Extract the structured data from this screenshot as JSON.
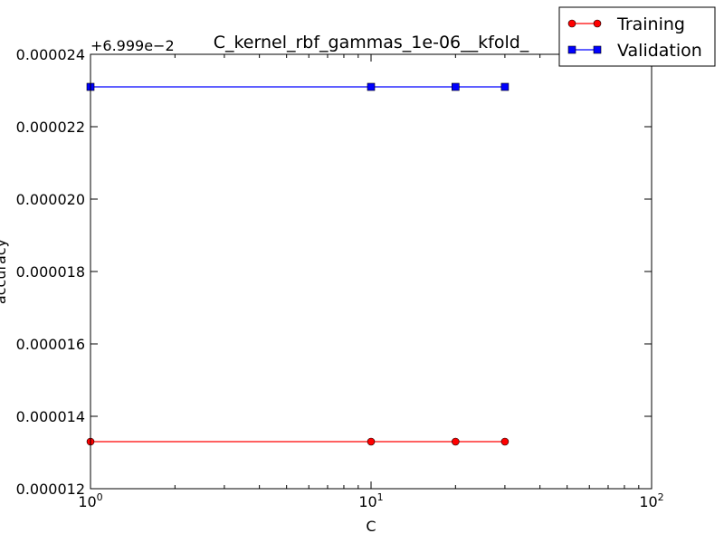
{
  "chart_data": {
    "type": "line",
    "title": "C_kernel_rbf_gammas_1e-06__kfold_",
    "xlabel": "C",
    "ylabel": "accuracy",
    "x_scale": "log",
    "xlim": [
      1,
      100
    ],
    "x_ticks": [
      1,
      10,
      100
    ],
    "x_tick_labels": [
      {
        "base": "10",
        "exp": "0"
      },
      {
        "base": "10",
        "exp": "1"
      },
      {
        "base": "10",
        "exp": "2"
      }
    ],
    "y_offset_label": "+6.999e−2",
    "y_offset": 0.06999,
    "ylim": [
      1.2e-05,
      2.4e-05
    ],
    "y_ticks": [
      1.2e-05,
      1.4e-05,
      1.6e-05,
      1.8e-05,
      2e-05,
      2.2e-05,
      2.4e-05
    ],
    "y_tick_labels": [
      "0.000012",
      "0.000014",
      "0.000016",
      "0.000018",
      "0.000020",
      "0.000022",
      "0.000024"
    ],
    "grid": false,
    "legend_position": "top-right",
    "x": [
      1,
      10,
      20,
      30
    ],
    "series": [
      {
        "name": "Training",
        "color": "#ff0000",
        "marker": "circle",
        "values": [
          1.33e-05,
          1.33e-05,
          1.33e-05,
          1.33e-05
        ]
      },
      {
        "name": "Validation",
        "color": "#0000ff",
        "marker": "square",
        "values": [
          2.31e-05,
          2.31e-05,
          2.31e-05,
          2.31e-05
        ]
      }
    ]
  }
}
